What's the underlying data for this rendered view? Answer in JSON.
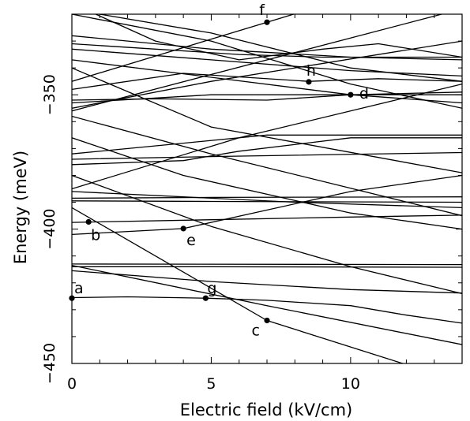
{
  "chart_data": {
    "type": "line",
    "title": "",
    "xlabel": "Electric field (kV/cm)",
    "ylabel": "Energy (meV)",
    "xlim": [
      0,
      14
    ],
    "ylim": [
      -450,
      -320
    ],
    "grid": false,
    "x_ticks": [
      {
        "value": 0,
        "label": "0"
      },
      {
        "value": 5,
        "label": "5"
      },
      {
        "value": 10,
        "label": "10"
      }
    ],
    "y_ticks": [
      {
        "value": -450,
        "label": "−450"
      },
      {
        "value": -400,
        "label": "−400"
      },
      {
        "value": -350,
        "label": "−350"
      }
    ],
    "line_color": "#000000",
    "series": [
      {
        "x": [
          0,
          7,
          14
        ],
        "y": [
          -413.5,
          -428.5,
          -443
        ]
      },
      {
        "x": [
          0,
          5,
          10,
          14
        ],
        "y": [
          -415.5,
          -419.5,
          -422.5,
          -423.8
        ]
      },
      {
        "x": [
          0,
          5,
          14
        ],
        "y": [
          -414,
          -414,
          -414.2
        ]
      },
      {
        "x": [
          0,
          14
        ],
        "y": [
          -413,
          -413.2
        ]
      },
      {
        "x": [
          0,
          2,
          4.8,
          7,
          10,
          12,
          14
        ],
        "y": [
          -425.5,
          -425.2,
          -425.7,
          -426.5,
          -428.5,
          -432,
          -435
        ]
      },
      {
        "x": [
          0,
          7,
          14
        ],
        "y": [
          -392,
          -434,
          -457
        ]
      },
      {
        "x": [
          0,
          5,
          10,
          14
        ],
        "y": [
          -397.5,
          -396.5,
          -395.5,
          -394.8
        ]
      },
      {
        "x": [
          0,
          4,
          10,
          14
        ],
        "y": [
          -402,
          -399.8,
          -386,
          -380
        ]
      },
      {
        "x": [
          0,
          8,
          14
        ],
        "y": [
          -386,
          -390,
          -392
        ]
      },
      {
        "x": [
          0,
          5,
          10,
          14
        ],
        "y": [
          -380,
          -399,
          -414,
          -424
        ]
      },
      {
        "x": [
          0,
          5,
          14
        ],
        "y": [
          -388.5,
          -388.2,
          -388
        ]
      },
      {
        "x": [
          0,
          5,
          14
        ],
        "y": [
          -389.5,
          -389.7,
          -390
        ]
      },
      {
        "x": [
          0,
          6,
          14
        ],
        "y": [
          -385,
          -366,
          -346
        ]
      },
      {
        "x": [
          0,
          4,
          10,
          14
        ],
        "y": [
          -366,
          -380,
          -394,
          -400
        ]
      },
      {
        "x": [
          0,
          4,
          7,
          10,
          14
        ],
        "y": [
          -372,
          -368,
          -365,
          -365,
          -365
        ]
      },
      {
        "x": [
          0,
          5,
          14
        ],
        "y": [
          -374,
          -373,
          -371.5
        ]
      },
      {
        "x": [
          0,
          4,
          6,
          10,
          14
        ],
        "y": [
          -376,
          -374.5,
          -371,
          -366,
          -366
        ]
      },
      {
        "x": [
          0,
          5,
          14
        ],
        "y": [
          -358,
          -372,
          -395
        ]
      },
      {
        "x": [
          0,
          5,
          14
        ],
        "y": [
          -355,
          -345,
          -330
        ]
      },
      {
        "x": [
          0,
          5,
          10,
          14
        ],
        "y": [
          -353,
          -350,
          -350,
          -349
        ]
      },
      {
        "x": [
          0,
          5,
          14
        ],
        "y": [
          -340,
          -362,
          -379
        ]
      },
      {
        "x": [
          0,
          4,
          8.5,
          11,
          14
        ],
        "y": [
          -348,
          -342,
          -345,
          -344,
          -345
        ]
      },
      {
        "x": [
          0,
          3,
          7,
          10,
          14
        ],
        "y": [
          -352,
          -351.5,
          -352,
          -350,
          -350
        ]
      },
      {
        "x": [
          0,
          10,
          14
        ],
        "y": [
          -337,
          -350,
          -353
        ]
      },
      {
        "x": [
          0,
          5,
          10,
          14
        ],
        "y": [
          -333,
          -337,
          -341,
          -343
        ]
      },
      {
        "x": [
          0,
          3,
          6,
          9,
          11,
          14
        ],
        "y": [
          -331,
          -333,
          -335,
          -336,
          -336,
          -336
        ]
      },
      {
        "x": [
          0,
          5,
          10,
          14
        ],
        "y": [
          -328,
          -333,
          -336,
          -337
        ]
      },
      {
        "x": [
          0,
          7,
          14
        ],
        "y": [
          -345,
          -323,
          -301
        ]
      },
      {
        "x": [
          0,
          14
        ],
        "y": [
          -356,
          -318
        ]
      },
      {
        "x": [
          0,
          3,
          6,
          9,
          11,
          14
        ],
        "y": [
          -316,
          -330,
          -337,
          -333,
          -331,
          -336
        ]
      },
      {
        "x": [
          0,
          5,
          10,
          14
        ],
        "y": [
          -320,
          -330,
          -346,
          -355
        ]
      },
      {
        "x": [
          1,
          5,
          10,
          14
        ],
        "y": [
          -320,
          -327,
          -340,
          -345
        ]
      }
    ],
    "points": [
      {
        "label": "a",
        "x": 0,
        "y": -425.7
      },
      {
        "label": "b",
        "x": 0.6,
        "y": -397.3
      },
      {
        "label": "c",
        "x": 7,
        "y": -434
      },
      {
        "label": "d",
        "x": 10,
        "y": -350
      },
      {
        "label": "e",
        "x": 4,
        "y": -399.8
      },
      {
        "label": "f",
        "x": 7,
        "y": -323
      },
      {
        "label": "g",
        "x": 4.8,
        "y": -425.7
      },
      {
        "label": "h",
        "x": 8.5,
        "y": -345.2
      }
    ]
  }
}
